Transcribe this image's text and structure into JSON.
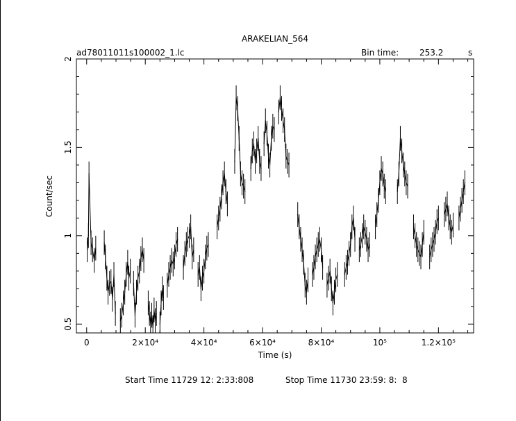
{
  "chart_data": {
    "type": "line",
    "title": "ARAKELIAN_564",
    "filename": "ad78011011s100002_1.lc",
    "bin_time_label": "Bin time:",
    "bin_time_value": "253.2",
    "bin_time_unit": "s",
    "xlabel": "Time (s)",
    "ylabel": "Count/sec",
    "xlim": [
      -3500,
      132000
    ],
    "ylim": [
      0.45,
      2.0
    ],
    "x_ticks": [
      {
        "v": 0,
        "label": "0"
      },
      {
        "v": 20000,
        "label": "2×10⁴"
      },
      {
        "v": 40000,
        "label": "4×10⁴"
      },
      {
        "v": 60000,
        "label": "6×10⁴"
      },
      {
        "v": 80000,
        "label": "8×10⁴"
      },
      {
        "v": 100000,
        "label": "10⁵"
      },
      {
        "v": 120000,
        "label": "1.2×10⁵"
      }
    ],
    "y_ticks": [
      {
        "v": 0.5,
        "label": "0.5"
      },
      {
        "v": 1.0,
        "label": "1"
      },
      {
        "v": 1.5,
        "label": "1.5"
      },
      {
        "v": 2.0,
        "label": "2"
      }
    ],
    "err": 0.07,
    "series": [
      {
        "points": [
          [
            200,
            0.92
          ],
          [
            600,
            1.0
          ],
          [
            800,
            1.35
          ],
          [
            1500,
            0.96
          ],
          [
            2000,
            0.92
          ],
          [
            2600,
            0.86
          ],
          [
            3100,
            0.93
          ],
          [
            6000,
            0.96
          ],
          [
            6400,
            0.88
          ],
          [
            6900,
            0.76
          ],
          [
            7300,
            0.68
          ],
          [
            7800,
            0.73
          ],
          [
            8300,
            0.74
          ],
          [
            8800,
            0.64
          ],
          [
            9300,
            0.78
          ],
          [
            9800,
            0.56
          ],
          [
            11500,
            0.52
          ],
          [
            12000,
            0.55
          ],
          [
            12500,
            0.62
          ],
          [
            13000,
            0.68
          ],
          [
            13500,
            0.78
          ],
          [
            14000,
            0.85
          ],
          [
            14400,
            0.76
          ],
          [
            14900,
            0.8
          ],
          [
            16000,
            0.73
          ],
          [
            16500,
            0.55
          ],
          [
            17000,
            0.68
          ],
          [
            17500,
            0.76
          ],
          [
            18000,
            0.8
          ],
          [
            18500,
            0.87
          ],
          [
            19000,
            0.92
          ],
          [
            19500,
            0.86
          ],
          [
            21000,
            0.62
          ],
          [
            21400,
            0.56
          ],
          [
            21800,
            0.5
          ],
          [
            22200,
            0.55
          ],
          [
            22600,
            0.48
          ],
          [
            23000,
            0.58
          ],
          [
            23400,
            0.52
          ],
          [
            23800,
            0.56
          ],
          [
            25000,
            0.5
          ],
          [
            25400,
            0.62
          ],
          [
            25800,
            0.7
          ],
          [
            26200,
            0.65
          ],
          [
            27500,
            0.72
          ],
          [
            28000,
            0.78
          ],
          [
            28500,
            0.82
          ],
          [
            29000,
            0.86
          ],
          [
            29500,
            0.84
          ],
          [
            30000,
            0.88
          ],
          [
            30500,
            0.95
          ],
          [
            31000,
            0.98
          ],
          [
            33000,
            0.82
          ],
          [
            33500,
            0.9
          ],
          [
            34000,
            0.95
          ],
          [
            34500,
            0.98
          ],
          [
            35000,
            1.0
          ],
          [
            35500,
            1.05
          ],
          [
            36000,
            0.88
          ],
          [
            36500,
            0.92
          ],
          [
            38000,
            0.78
          ],
          [
            38500,
            0.82
          ],
          [
            39000,
            0.7
          ],
          [
            39500,
            0.76
          ],
          [
            40000,
            0.8
          ],
          [
            40500,
            0.88
          ],
          [
            41000,
            0.93
          ],
          [
            41500,
            0.95
          ],
          [
            44500,
            1.05
          ],
          [
            45000,
            1.1
          ],
          [
            45500,
            1.15
          ],
          [
            46000,
            1.22
          ],
          [
            46500,
            1.3
          ],
          [
            47000,
            1.35
          ],
          [
            47500,
            1.25
          ],
          [
            48000,
            1.18
          ],
          [
            50500,
            1.42
          ],
          [
            51000,
            1.78
          ],
          [
            51500,
            1.72
          ],
          [
            52000,
            1.55
          ],
          [
            52500,
            1.35
          ],
          [
            53000,
            1.3
          ],
          [
            53500,
            1.28
          ],
          [
            54000,
            1.25
          ],
          [
            56000,
            1.38
          ],
          [
            56500,
            1.48
          ],
          [
            57000,
            1.52
          ],
          [
            57500,
            1.42
          ],
          [
            58000,
            1.48
          ],
          [
            58500,
            1.55
          ],
          [
            59000,
            1.42
          ],
          [
            59500,
            1.38
          ],
          [
            60500,
            1.52
          ],
          [
            61000,
            1.65
          ],
          [
            61500,
            1.58
          ],
          [
            62000,
            1.45
          ],
          [
            62500,
            1.4
          ],
          [
            63000,
            1.55
          ],
          [
            63500,
            1.62
          ],
          [
            64000,
            1.6
          ],
          [
            65500,
            1.7
          ],
          [
            66000,
            1.78
          ],
          [
            66500,
            1.72
          ],
          [
            67000,
            1.65
          ],
          [
            67500,
            1.6
          ],
          [
            68000,
            1.45
          ],
          [
            68500,
            1.42
          ],
          [
            69000,
            1.4
          ],
          [
            72000,
            1.12
          ],
          [
            72500,
            1.05
          ],
          [
            73000,
            0.98
          ],
          [
            73500,
            0.92
          ],
          [
            74000,
            0.85
          ],
          [
            74500,
            0.72
          ],
          [
            75000,
            0.68
          ],
          [
            75500,
            0.75
          ],
          [
            77000,
            0.78
          ],
          [
            77500,
            0.82
          ],
          [
            78000,
            0.88
          ],
          [
            78500,
            0.92
          ],
          [
            79000,
            0.95
          ],
          [
            79500,
            0.98
          ],
          [
            80000,
            0.92
          ],
          [
            80500,
            0.82
          ],
          [
            82000,
            0.72
          ],
          [
            82500,
            0.76
          ],
          [
            83000,
            0.8
          ],
          [
            83500,
            0.7
          ],
          [
            84000,
            0.62
          ],
          [
            84500,
            0.68
          ],
          [
            85000,
            0.75
          ],
          [
            85500,
            0.78
          ],
          [
            88000,
            0.78
          ],
          [
            88500,
            0.82
          ],
          [
            89000,
            0.85
          ],
          [
            89500,
            0.9
          ],
          [
            90000,
            0.95
          ],
          [
            90500,
            1.05
          ],
          [
            91000,
            1.1
          ],
          [
            91500,
            0.98
          ],
          [
            93000,
            0.92
          ],
          [
            93500,
            0.95
          ],
          [
            94000,
            1.0
          ],
          [
            94500,
            1.05
          ],
          [
            95000,
            1.02
          ],
          [
            95500,
            0.98
          ],
          [
            96000,
            0.92
          ],
          [
            96500,
            0.95
          ],
          [
            98500,
            1.05
          ],
          [
            99000,
            1.12
          ],
          [
            99500,
            1.2
          ],
          [
            100000,
            1.3
          ],
          [
            100500,
            1.38
          ],
          [
            101000,
            1.35
          ],
          [
            101500,
            1.28
          ],
          [
            102000,
            1.25
          ],
          [
            106000,
            1.25
          ],
          [
            106500,
            1.35
          ],
          [
            107000,
            1.55
          ],
          [
            107500,
            1.48
          ],
          [
            108000,
            1.4
          ],
          [
            108500,
            1.35
          ],
          [
            109000,
            1.3
          ],
          [
            109500,
            1.28
          ],
          [
            111500,
            1.05
          ],
          [
            112000,
            1.0
          ],
          [
            112500,
            0.95
          ],
          [
            113000,
            0.92
          ],
          [
            113500,
            0.9
          ],
          [
            114000,
            0.88
          ],
          [
            114500,
            0.95
          ],
          [
            115000,
            1.02
          ],
          [
            117000,
            0.88
          ],
          [
            117500,
            0.92
          ],
          [
            118000,
            0.95
          ],
          [
            118500,
            0.98
          ],
          [
            119000,
            1.02
          ],
          [
            119500,
            1.08
          ],
          [
            120000,
            1.1
          ],
          [
            122000,
            1.12
          ],
          [
            122500,
            1.15
          ],
          [
            123000,
            1.18
          ],
          [
            123500,
            1.1
          ],
          [
            124000,
            1.05
          ],
          [
            124500,
            1.02
          ],
          [
            125000,
            1.06
          ],
          [
            127000,
            1.1
          ],
          [
            127500,
            1.15
          ],
          [
            128000,
            1.2
          ],
          [
            128500,
            1.25
          ],
          [
            129000,
            1.3
          ]
        ]
      }
    ]
  },
  "footer": {
    "start_time": "Start Time 11729 12: 2:33:808",
    "stop_time": "Stop Time 11730 23:59: 8:  8"
  }
}
